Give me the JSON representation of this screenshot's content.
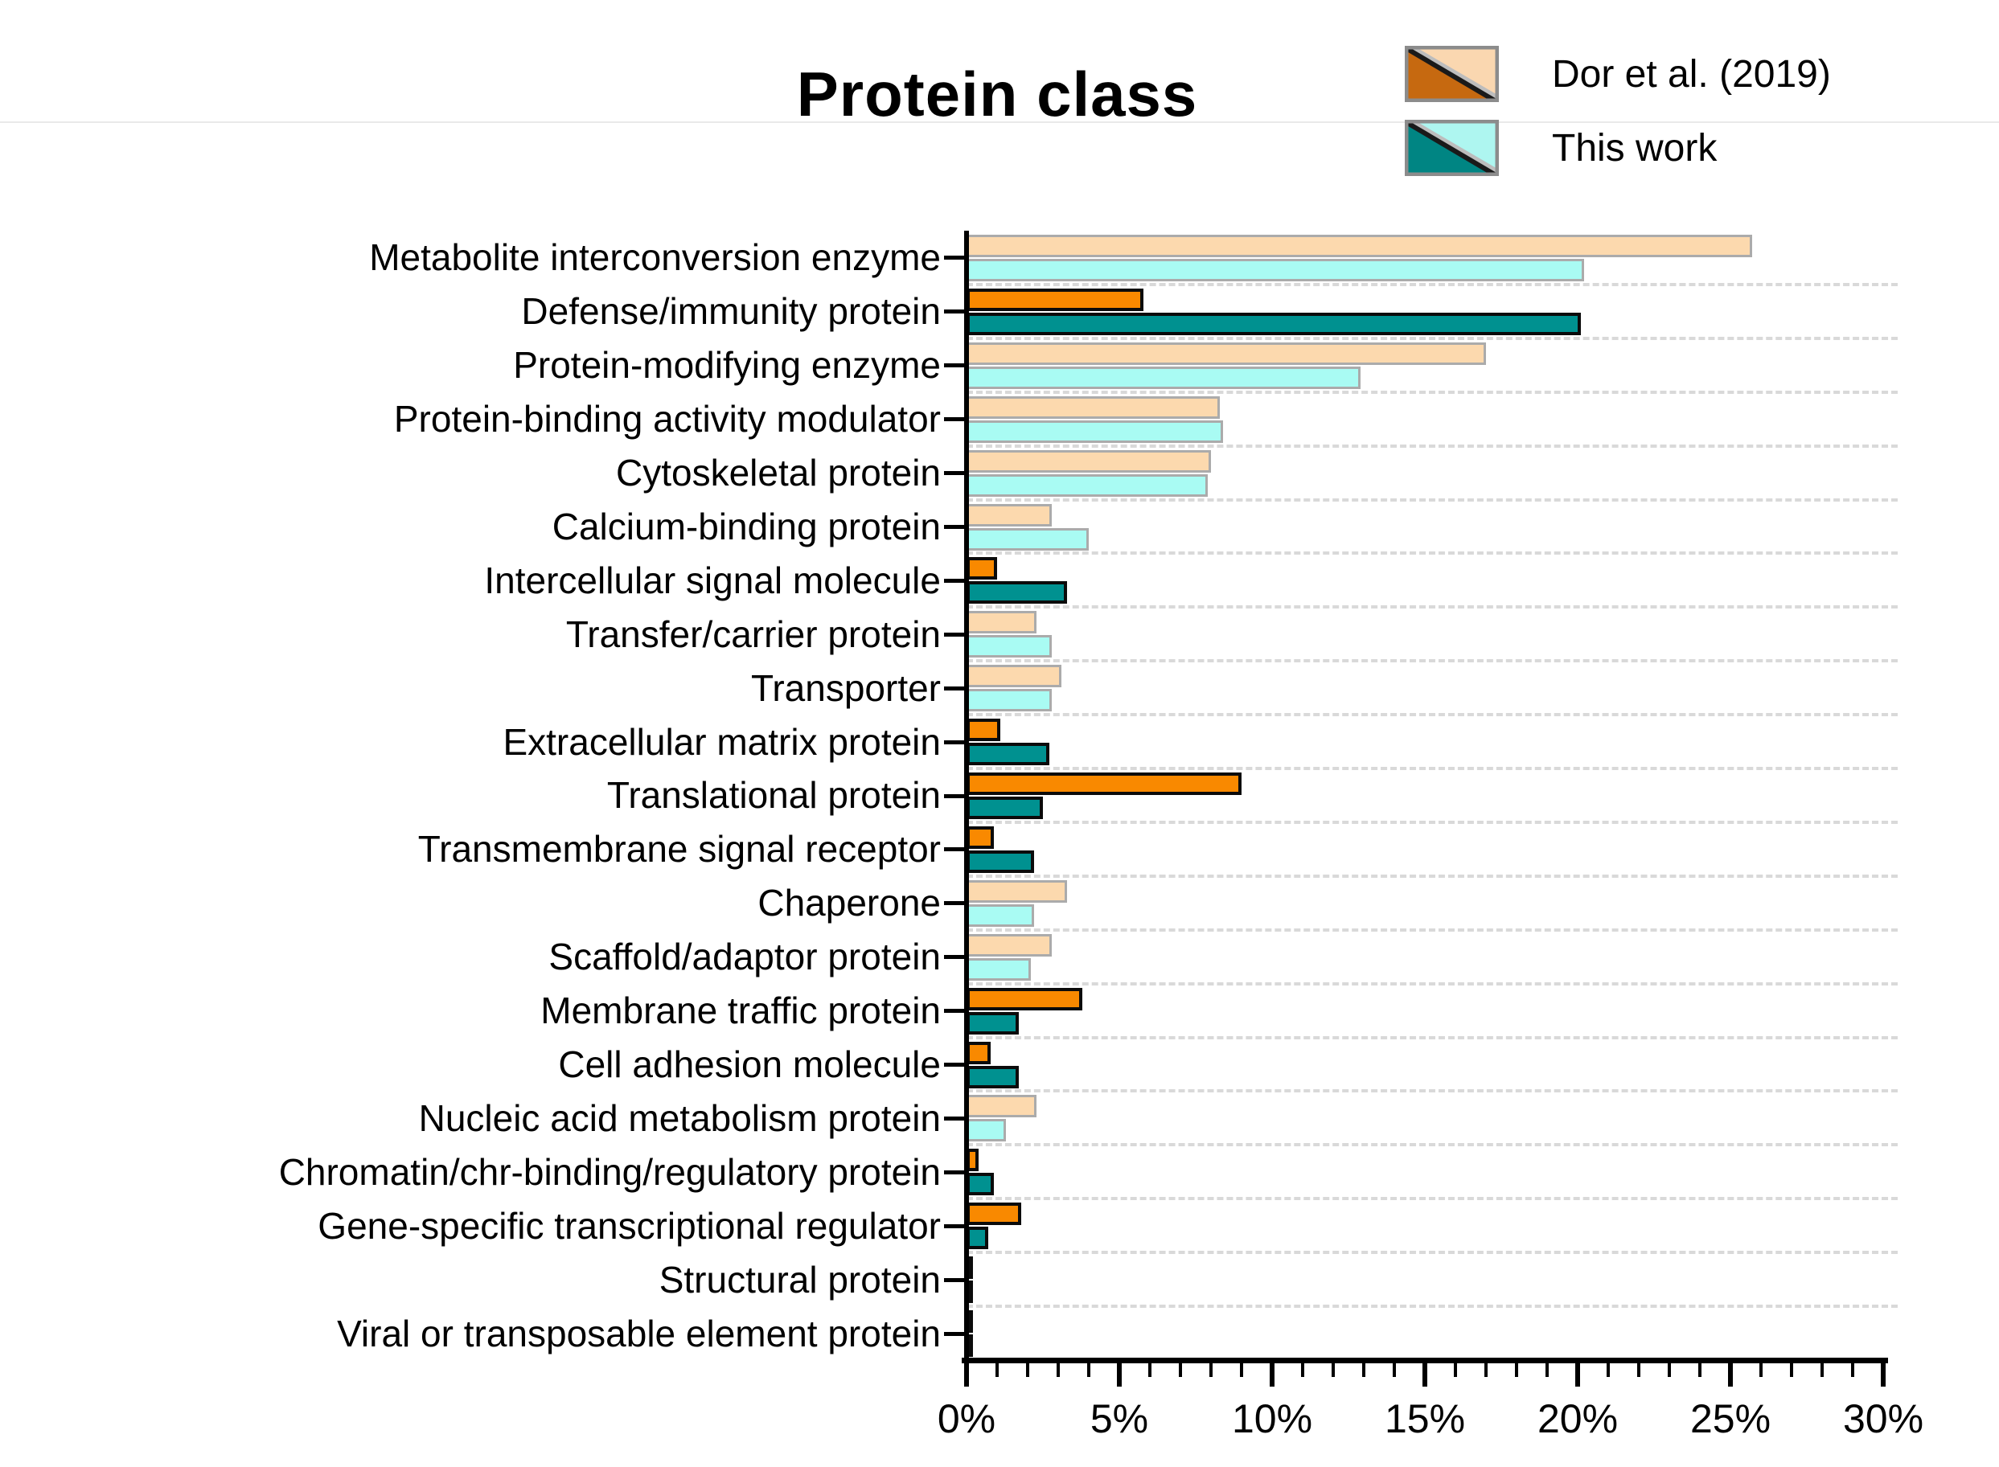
{
  "title": "Protein class",
  "legend": {
    "position": "top-right",
    "items": [
      {
        "label": "Dor et al. (2019)",
        "dark_color": "#c66910",
        "light_color": "#fad7b0"
      },
      {
        "label": "This work",
        "dark_color": "#008583",
        "light_color": "#aef6f0"
      }
    ]
  },
  "colors": {
    "dor_dark": "#f98900",
    "dor_light": "#fcd9ae",
    "work_dark": "#009190",
    "work_light": "#a9fbf3",
    "border_dark": "#0b0b0b",
    "border_light": "#ababab",
    "grid": "#d9d9d9",
    "axis": "#000000"
  },
  "chart_data": {
    "type": "bar",
    "orientation": "horizontal",
    "title": "Protein class",
    "xlabel": "",
    "ylabel": "",
    "unit": "%",
    "xlim": [
      0,
      30
    ],
    "x_tick_labels": [
      "0%",
      "5%",
      "10%",
      "15%",
      "20%",
      "25%",
      "30%"
    ],
    "minor_tick_step_pct": 1,
    "grid": "dashed-horizontal",
    "legend_position": "top-right",
    "categories": [
      "Metabolite interconversion enzyme",
      "Defense/immunity protein",
      "Protein-modifying enzyme",
      "Protein-binding activity modulator",
      "Cytoskeletal protein",
      "Calcium-binding protein",
      "Intercellular signal molecule",
      "Transfer/carrier protein",
      "Transporter",
      "Extracellular matrix protein",
      "Translational protein",
      "Transmembrane signal receptor",
      "Chaperone",
      "Scaffold/adaptor protein",
      "Membrane traffic protein",
      "Cell adhesion molecule",
      "Nucleic acid metabolism protein",
      "Chromatin/chr-binding/regulatory protein",
      "Gene-specific transcriptional regulator",
      "Structural protein",
      "Viral or transposable element protein"
    ],
    "series": [
      {
        "name": "Dor et al. (2019)",
        "values": [
          25.7,
          5.8,
          17.0,
          8.3,
          8.0,
          2.8,
          1.0,
          2.3,
          3.1,
          1.1,
          9.0,
          0.9,
          3.3,
          2.8,
          3.8,
          0.8,
          2.3,
          0.4,
          1.8,
          0.1,
          0.05
        ]
      },
      {
        "name": "This work",
        "values": [
          20.2,
          20.1,
          12.9,
          8.4,
          7.9,
          4.0,
          3.3,
          2.8,
          2.8,
          2.7,
          2.5,
          2.2,
          2.2,
          2.1,
          1.7,
          1.7,
          1.3,
          0.9,
          0.7,
          0.1,
          0.05
        ]
      }
    ],
    "dark_emphasis_per_category": [
      false,
      true,
      false,
      false,
      false,
      false,
      true,
      false,
      false,
      true,
      true,
      true,
      false,
      false,
      true,
      true,
      false,
      true,
      true,
      true,
      true
    ]
  }
}
